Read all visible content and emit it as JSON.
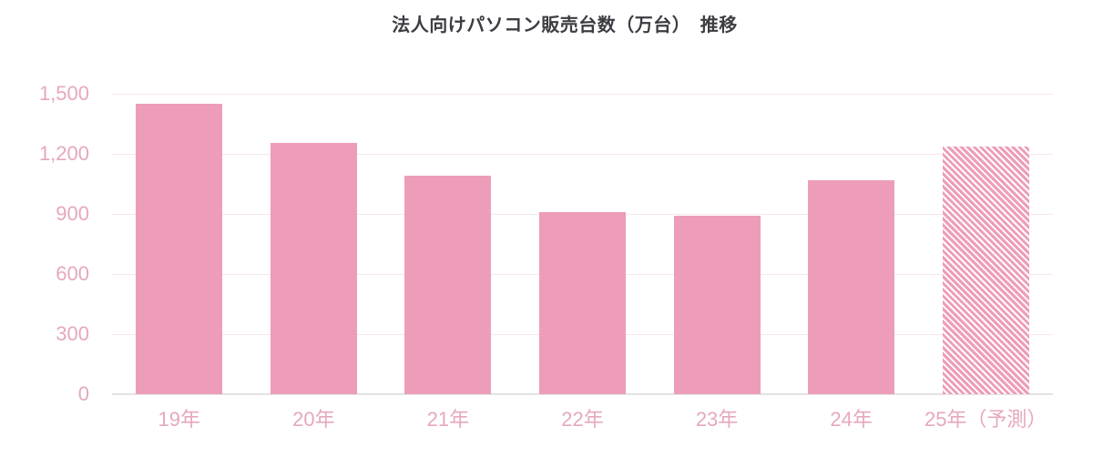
{
  "title": "法人向けパソコン販売台数（万台）　推移",
  "chart_data": {
    "type": "bar",
    "title": "法人向けパソコン販売台数（万台）　推移",
    "categories": [
      "19年",
      "20年",
      "21年",
      "22年",
      "23年",
      "24年",
      "25年（予測）"
    ],
    "values": [
      1450,
      1255,
      1090,
      910,
      890,
      1070,
      1235
    ],
    "forecast_index": 6,
    "xlabel": "",
    "ylabel": "",
    "ylim": [
      0,
      1500
    ],
    "yticks": [
      0,
      300,
      600,
      900,
      1200,
      1500
    ],
    "ytick_labels": [
      "0",
      "300",
      "600",
      "900",
      "1,200",
      "1,500"
    ],
    "grid": true,
    "legend_position": "none",
    "colors": {
      "bar_fill": "#ed9db9",
      "forecast_hatch": "#ed9db9",
      "tick_label": "#e6a8be",
      "gridline": "#f6e7ec",
      "axis_line": "#e2e2e2",
      "title_text": "#3c3c43",
      "background": "#ffffff"
    }
  }
}
